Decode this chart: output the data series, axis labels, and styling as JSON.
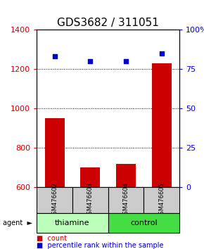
{
  "title": "GDS3682 / 311051",
  "samples": [
    "GSM476602",
    "GSM476603",
    "GSM476604",
    "GSM476605"
  ],
  "bar_values": [
    950,
    700,
    715,
    1230
  ],
  "percentile_values": [
    83,
    80,
    80,
    85
  ],
  "ylim_left": [
    600,
    1400
  ],
  "ylim_right": [
    0,
    100
  ],
  "yticks_left": [
    600,
    800,
    1000,
    1200,
    1400
  ],
  "yticks_right": [
    0,
    25,
    50,
    75,
    100
  ],
  "ytick_labels_right": [
    "0",
    "25",
    "50",
    "75",
    "100%"
  ],
  "bar_color": "#cc0000",
  "dot_color": "#0000cc",
  "group_info": [
    {
      "label": "thiamine",
      "start": 0,
      "end": 2,
      "color": "#bbffbb"
    },
    {
      "label": "control",
      "start": 2,
      "end": 4,
      "color": "#44dd44"
    }
  ],
  "legend_items": [
    "count",
    "percentile rank within the sample"
  ],
  "legend_colors": [
    "#cc0000",
    "#0000cc"
  ],
  "title_fontsize": 11,
  "tick_fontsize": 8,
  "sample_fontsize": 6,
  "group_fontsize": 8,
  "legend_fontsize": 7
}
